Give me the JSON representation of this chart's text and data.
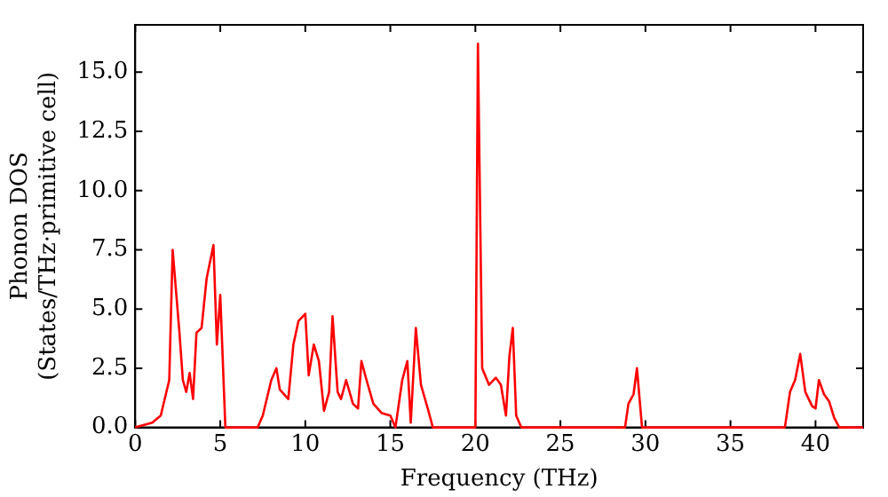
{
  "chart_data": {
    "type": "line",
    "xlabel": "Frequency (THz)",
    "ylabel": "Phonon DOS\n(States/THz·primitive cell)",
    "xlim": [
      0,
      42.8
    ],
    "ylim": [
      0,
      17
    ],
    "xticks": [
      0,
      5,
      10,
      15,
      20,
      25,
      30,
      35,
      40
    ],
    "yticks": [
      {
        "value": 0,
        "label": "0.0"
      },
      {
        "value": 2.5,
        "label": "2.5"
      },
      {
        "value": 5,
        "label": "5.0"
      },
      {
        "value": 7.5,
        "label": "7.5"
      },
      {
        "value": 10,
        "label": "10.0"
      },
      {
        "value": 12.5,
        "label": "12.5"
      },
      {
        "value": 15,
        "label": "15.0"
      }
    ],
    "grid": false,
    "legend": false,
    "marker": "none",
    "line_style": "solid",
    "series": [
      {
        "color": "#ff0000",
        "x": [
          0,
          1,
          1.5,
          2,
          2.2,
          2.6,
          2.8,
          3,
          3.2,
          3.4,
          3.6,
          3.9,
          4.2,
          4.6,
          4.8,
          5,
          5.3,
          7.2,
          7.5,
          8,
          8.3,
          8.5,
          9,
          9.3,
          9.6,
          10,
          10.2,
          10.5,
          10.8,
          11.1,
          11.4,
          11.6,
          11.9,
          12.1,
          12.4,
          12.8,
          13.1,
          13.3,
          13.6,
          14,
          14.5,
          15,
          15.3,
          15.7,
          16,
          16.2,
          16.5,
          16.8,
          17.2,
          17.5,
          20,
          20.15,
          20.4,
          20.8,
          21.2,
          21.5,
          21.8,
          22,
          22.2,
          22.4,
          22.7,
          28.8,
          29,
          29.3,
          29.5,
          29.8,
          38.2,
          38.5,
          38.8,
          39.1,
          39.4,
          39.8,
          40,
          40.2,
          40.5,
          40.8,
          41.1,
          41.4,
          42.8
        ],
        "values": [
          0,
          0.2,
          0.5,
          2,
          7.5,
          4,
          2,
          1.5,
          2.3,
          1.2,
          4,
          4.2,
          6.3,
          7.7,
          3.5,
          5.6,
          0,
          0,
          0.5,
          2,
          2.5,
          1.6,
          1.2,
          3.5,
          4.5,
          4.8,
          2.2,
          3.5,
          2.8,
          0.7,
          1.5,
          4.7,
          1.5,
          1.2,
          2,
          1,
          0.8,
          2.8,
          2,
          1,
          0.6,
          0.5,
          0,
          2,
          2.8,
          0.2,
          4.2,
          1.8,
          0.8,
          0,
          0,
          16.2,
          2.5,
          1.8,
          2.1,
          1.8,
          0.5,
          3,
          4.2,
          0.5,
          0,
          0,
          1,
          1.4,
          2.5,
          0,
          0,
          1.5,
          2,
          3.1,
          1.5,
          0.9,
          0.8,
          2,
          1.4,
          1.1,
          0.4,
          0,
          0
        ]
      }
    ]
  }
}
